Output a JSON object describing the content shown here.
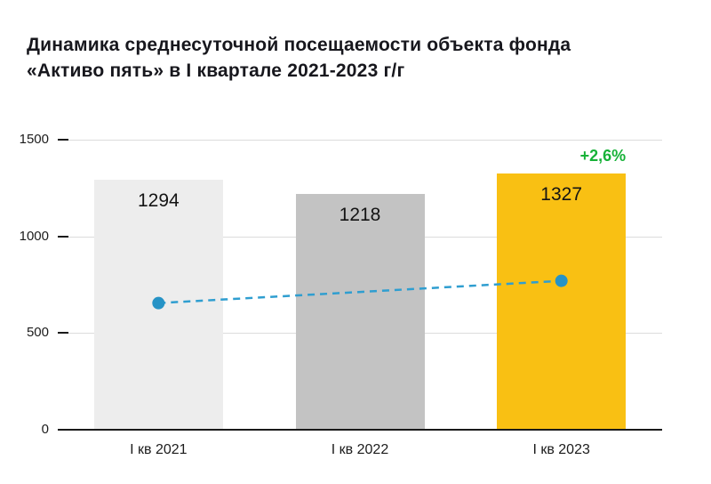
{
  "title": {
    "line1": "Динамика среднесуточной посещаемости объекта фонда",
    "line2": "«Активо пять» в I квартале 2021-2023 г/г"
  },
  "chart_data": {
    "type": "bar",
    "title": "Динамика среднесуточной посещаемости объекта фонда «Активо пять» в I квартале 2021-2023 г/г",
    "categories": [
      "I кв 2021",
      "I кв 2022",
      "I кв 2023"
    ],
    "values": [
      1294,
      1218,
      1327
    ],
    "bar_colors": [
      "#ededed",
      "#c3c3c3",
      "#f9c013"
    ],
    "ylim": [
      0,
      1500
    ],
    "yticks": [
      0,
      500,
      1000,
      1500
    ],
    "grid": true,
    "legend": "none",
    "annotation": {
      "text": "+2,6%",
      "color": "#17b238"
    },
    "line_series": {
      "name": "trend",
      "style": "dashed",
      "color": "#2f9ed0",
      "point_color": "#2693c6",
      "x_indices": [
        0,
        2
      ],
      "values": [
        655,
        770
      ]
    }
  }
}
